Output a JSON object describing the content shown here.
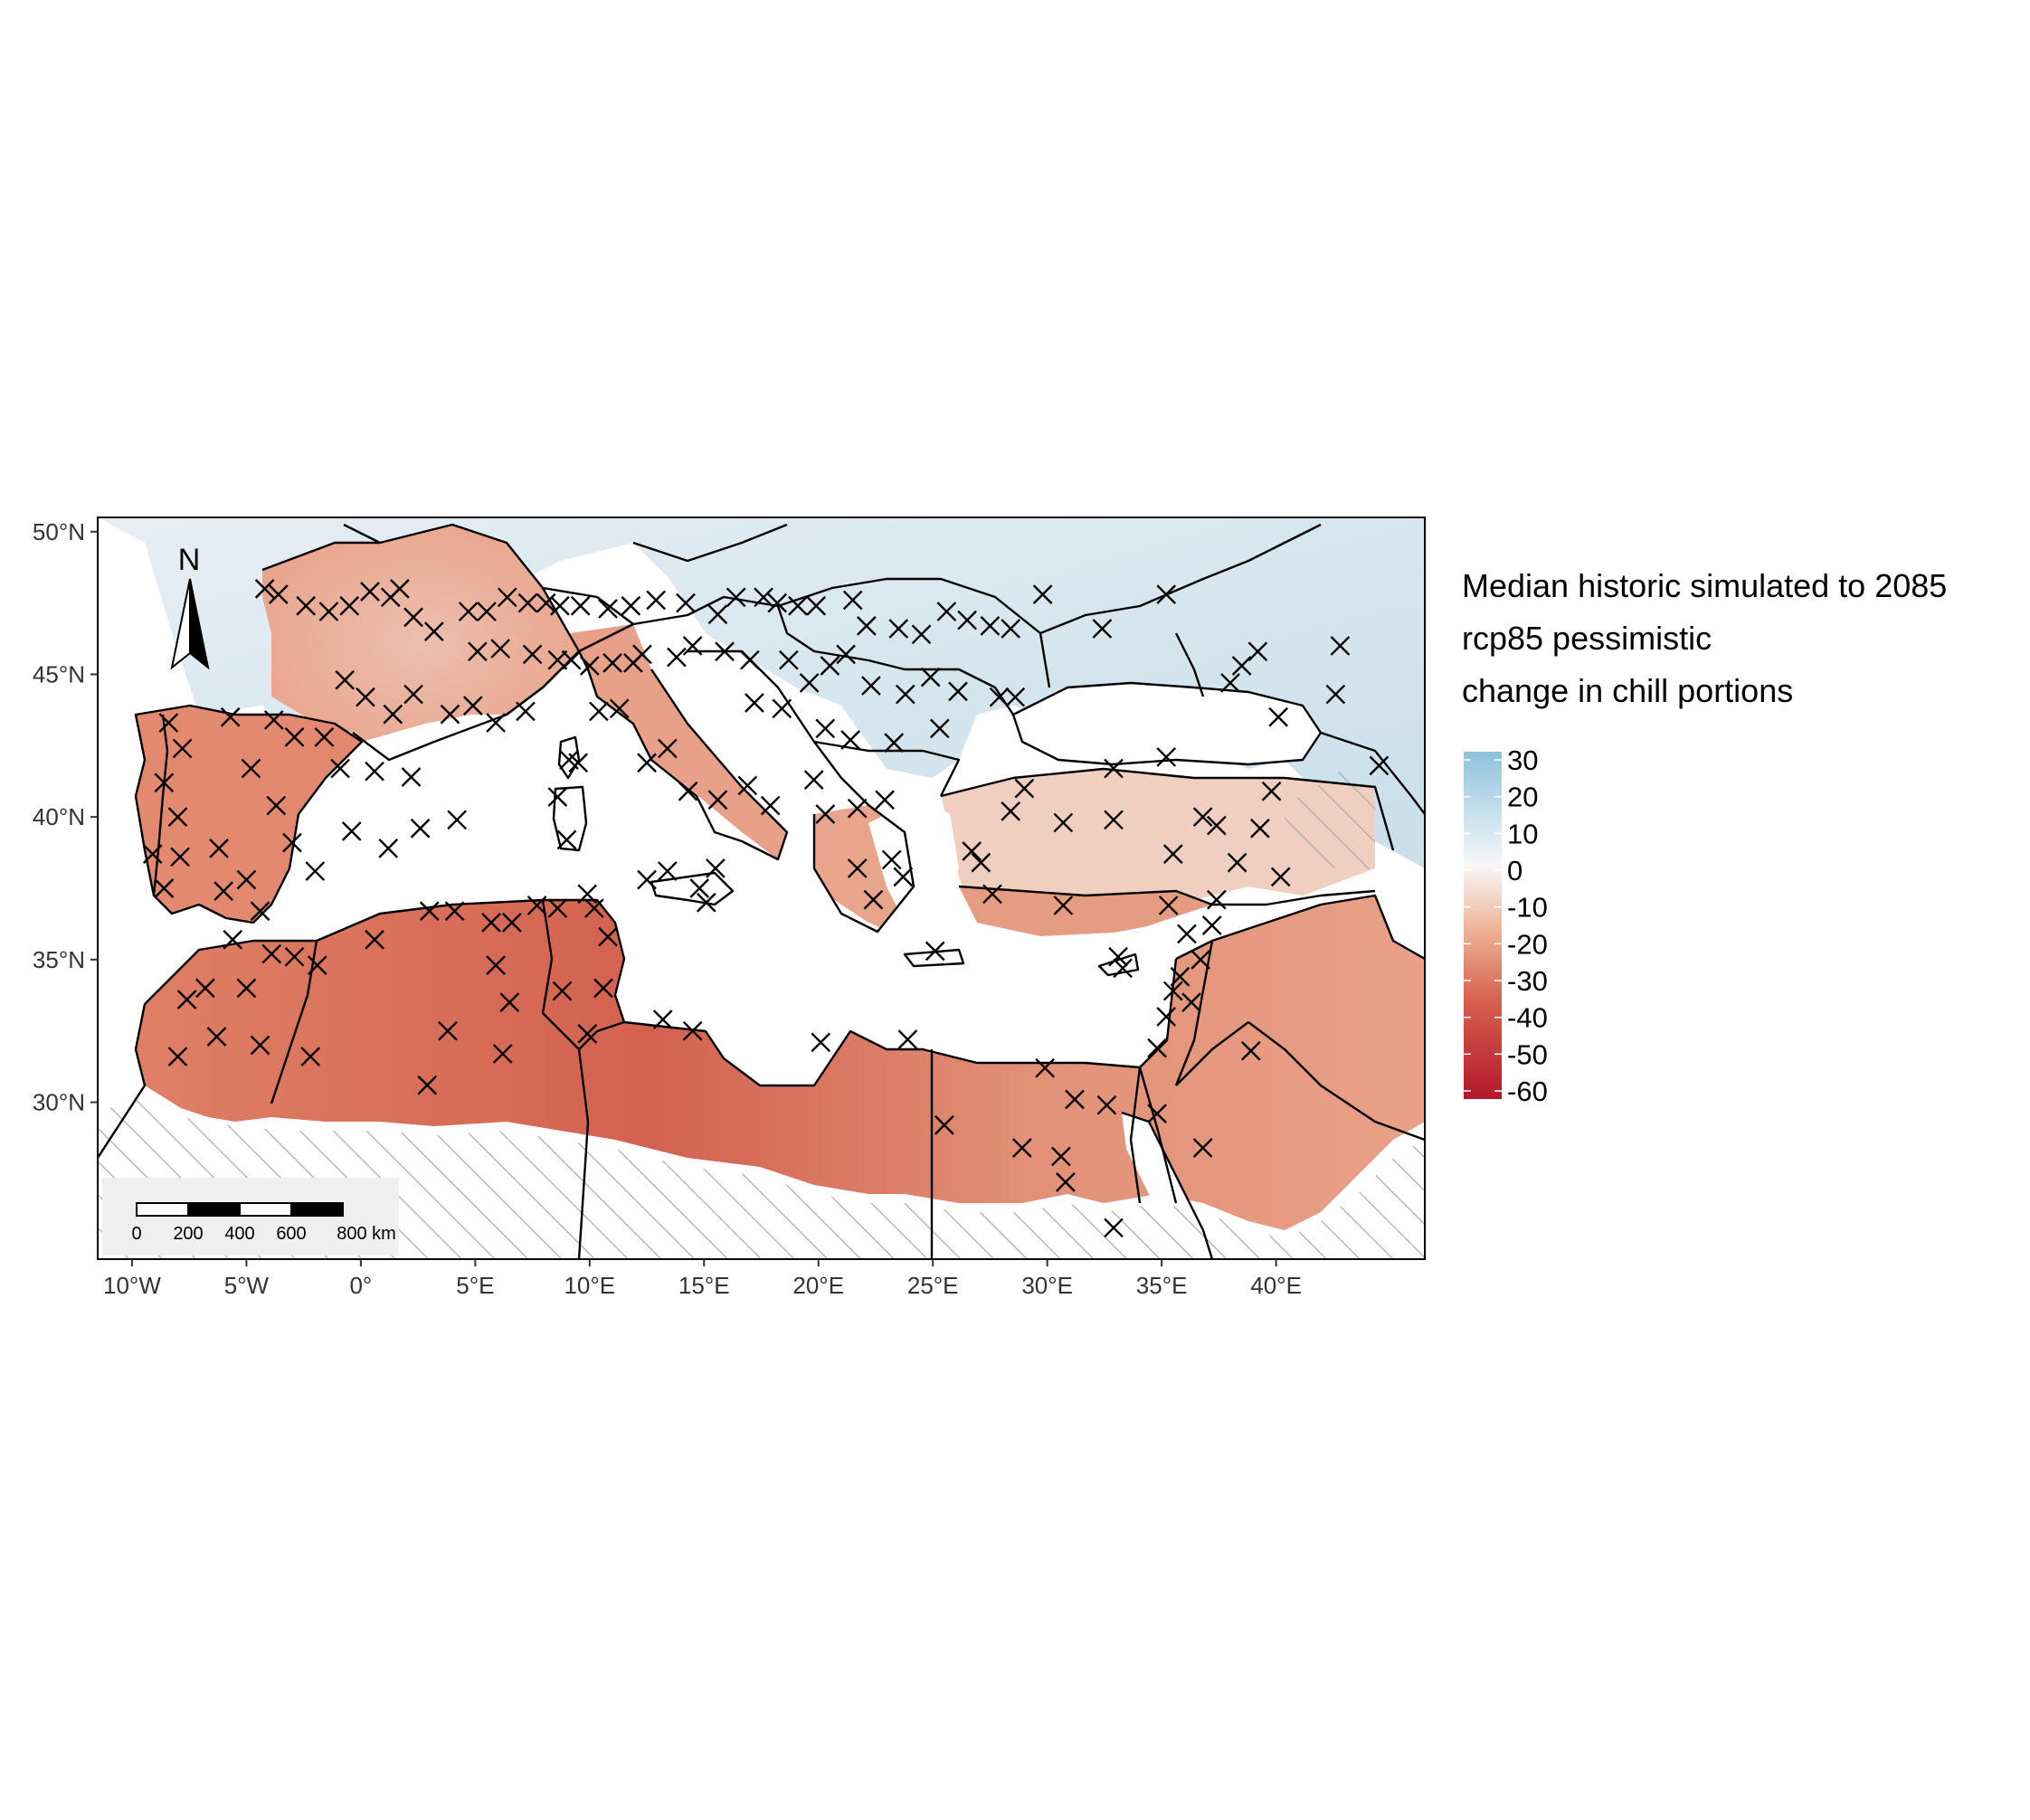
{
  "map": {
    "type": "raster-map",
    "region": "Mediterranean",
    "lon_range": [
      -11.5,
      46.5
    ],
    "lat_range": [
      24.5,
      50.5
    ],
    "x_ticks": [
      "10°W",
      "5°W",
      "0°",
      "5°E",
      "10°E",
      "15°E",
      "20°E",
      "25°E",
      "30°E",
      "35°E",
      "40°E"
    ],
    "x_tick_values": [
      -10,
      -5,
      0,
      5,
      10,
      15,
      20,
      25,
      30,
      35,
      40
    ],
    "y_ticks": [
      "50°N",
      "45°N",
      "40°N",
      "35°N",
      "30°N"
    ],
    "y_tick_values": [
      50,
      45,
      40,
      35,
      30
    ],
    "grid": false,
    "hatched_area": "southern/eastern no-data region (desert)",
    "marker": "x"
  },
  "legend": {
    "title_lines": [
      "Median historic simulated to 2085",
      "rcp85 pessimistic",
      "change in chill portions"
    ],
    "ticks": [
      "30",
      "20",
      "10",
      "0",
      "-10",
      "-20",
      "-30",
      "-40",
      "-50",
      "-60"
    ],
    "tick_values": [
      30,
      20,
      10,
      0,
      -10,
      -20,
      -30,
      -40,
      -50,
      -60
    ],
    "colors": {
      "high": "#8ec1dc",
      "mid": "#f7f7f7",
      "low": "#b2182b"
    },
    "placement": "right"
  },
  "north_arrow": {
    "label": "N",
    "icon": "north-arrow-icon"
  },
  "scale_bar": {
    "labels": [
      "0",
      "200",
      "400",
      "600",
      "800 km"
    ]
  },
  "chart_data": {
    "type": "map-scatter",
    "title": "",
    "xlabel": "",
    "ylabel": "",
    "xlim": [
      -11.5,
      46.5
    ],
    "ylim": [
      24.5,
      50.5
    ],
    "value_scale": {
      "name": "change in chill portions",
      "range": [
        -60,
        30
      ],
      "midpoint": 0
    },
    "stations": [
      [
        -4.2,
        48.0
      ],
      [
        -3.6,
        47.8
      ],
      [
        -2.4,
        47.4
      ],
      [
        -1.4,
        47.2
      ],
      [
        -0.5,
        47.4
      ],
      [
        0.4,
        47.9
      ],
      [
        1.3,
        47.7
      ],
      [
        1.7,
        48.0
      ],
      [
        2.3,
        47.0
      ],
      [
        3.2,
        46.5
      ],
      [
        4.7,
        47.2
      ],
      [
        5.5,
        47.2
      ],
      [
        6.4,
        47.7
      ],
      [
        7.3,
        47.5
      ],
      [
        8.1,
        47.5
      ],
      [
        8.7,
        47.4
      ],
      [
        9.6,
        47.4
      ],
      [
        10.8,
        47.3
      ],
      [
        11.8,
        47.4
      ],
      [
        12.9,
        47.6
      ],
      [
        14.2,
        47.5
      ],
      [
        15.6,
        47.1
      ],
      [
        16.4,
        47.7
      ],
      [
        17.6,
        47.7
      ],
      [
        18.2,
        47.5
      ],
      [
        19.1,
        47.4
      ],
      [
        19.9,
        47.4
      ],
      [
        21.5,
        47.6
      ],
      [
        22.1,
        46.7
      ],
      [
        23.5,
        46.6
      ],
      [
        24.5,
        46.4
      ],
      [
        25.6,
        47.2
      ],
      [
        26.5,
        46.9
      ],
      [
        27.5,
        46.7
      ],
      [
        28.4,
        46.6
      ],
      [
        29.8,
        47.8
      ],
      [
        32.4,
        46.6
      ],
      [
        35.2,
        47.8
      ],
      [
        38.5,
        45.3
      ],
      [
        39.2,
        45.8
      ],
      [
        42.8,
        46.0
      ],
      [
        40.1,
        43.5
      ],
      [
        42.6,
        44.3
      ],
      [
        44.5,
        41.8
      ],
      [
        38.0,
        44.7
      ],
      [
        -0.7,
        44.8
      ],
      [
        0.2,
        44.2
      ],
      [
        1.4,
        43.6
      ],
      [
        2.3,
        44.3
      ],
      [
        3.9,
        43.6
      ],
      [
        4.9,
        43.9
      ],
      [
        5.9,
        43.3
      ],
      [
        7.2,
        43.7
      ],
      [
        5.1,
        45.8
      ],
      [
        6.1,
        45.9
      ],
      [
        7.5,
        45.7
      ],
      [
        8.6,
        45.5
      ],
      [
        9.2,
        45.5
      ],
      [
        10.0,
        45.3
      ],
      [
        11.0,
        45.4
      ],
      [
        11.9,
        45.4
      ],
      [
        12.3,
        45.7
      ],
      [
        13.8,
        45.6
      ],
      [
        14.5,
        46.0
      ],
      [
        15.9,
        45.8
      ],
      [
        17.0,
        45.5
      ],
      [
        18.7,
        45.5
      ],
      [
        20.5,
        45.3
      ],
      [
        21.2,
        45.7
      ],
      [
        22.3,
        44.6
      ],
      [
        23.8,
        44.3
      ],
      [
        24.9,
        44.9
      ],
      [
        26.1,
        44.4
      ],
      [
        27.9,
        44.2
      ],
      [
        28.6,
        44.2
      ],
      [
        25.3,
        43.1
      ],
      [
        23.3,
        42.6
      ],
      [
        21.4,
        42.7
      ],
      [
        20.3,
        43.1
      ],
      [
        18.4,
        43.8
      ],
      [
        19.6,
        44.7
      ],
      [
        17.2,
        44.0
      ],
      [
        -8.4,
        43.3
      ],
      [
        -7.8,
        42.4
      ],
      [
        -8.6,
        41.2
      ],
      [
        -8.0,
        40.0
      ],
      [
        -9.1,
        38.7
      ],
      [
        -8.6,
        37.5
      ],
      [
        -7.9,
        38.6
      ],
      [
        -6.0,
        37.4
      ],
      [
        -5.0,
        37.8
      ],
      [
        -4.4,
        36.7
      ],
      [
        -3.7,
        40.4
      ],
      [
        -3.0,
        39.1
      ],
      [
        -2.0,
        38.1
      ],
      [
        -0.4,
        39.5
      ],
      [
        -0.9,
        41.7
      ],
      [
        0.6,
        41.6
      ],
      [
        2.2,
        41.4
      ],
      [
        -1.6,
        42.8
      ],
      [
        -3.8,
        43.4
      ],
      [
        -5.7,
        43.5
      ],
      [
        -6.2,
        38.9
      ],
      [
        -4.8,
        41.7
      ],
      [
        -2.9,
        42.8
      ],
      [
        1.2,
        38.9
      ],
      [
        2.6,
        39.6
      ],
      [
        4.2,
        39.9
      ],
      [
        9.0,
        39.2
      ],
      [
        8.6,
        40.7
      ],
      [
        9.1,
        42.0
      ],
      [
        9.5,
        41.9
      ],
      [
        10.4,
        43.7
      ],
      [
        11.3,
        43.8
      ],
      [
        12.5,
        41.9
      ],
      [
        13.4,
        42.4
      ],
      [
        14.3,
        40.9
      ],
      [
        15.6,
        40.6
      ],
      [
        16.9,
        41.1
      ],
      [
        17.9,
        40.4
      ],
      [
        15.5,
        38.2
      ],
      [
        13.4,
        38.1
      ],
      [
        14.8,
        37.5
      ],
      [
        12.5,
        37.8
      ],
      [
        15.1,
        37.0
      ],
      [
        19.8,
        41.3
      ],
      [
        20.3,
        40.1
      ],
      [
        21.7,
        40.3
      ],
      [
        22.9,
        40.6
      ],
      [
        21.7,
        38.2
      ],
      [
        23.7,
        37.9
      ],
      [
        22.4,
        37.1
      ],
      [
        23.2,
        38.5
      ],
      [
        25.1,
        35.3
      ],
      [
        27.1,
        38.4
      ],
      [
        28.4,
        40.2
      ],
      [
        29.0,
        41.0
      ],
      [
        30.7,
        39.8
      ],
      [
        32.9,
        39.9
      ],
      [
        35.5,
        38.7
      ],
      [
        36.8,
        40.0
      ],
      [
        39.8,
        40.9
      ],
      [
        38.3,
        38.4
      ],
      [
        37.4,
        37.1
      ],
      [
        35.3,
        36.9
      ],
      [
        33.1,
        35.1
      ],
      [
        30.7,
        36.9
      ],
      [
        27.6,
        37.3
      ],
      [
        26.7,
        38.8
      ],
      [
        32.9,
        41.7
      ],
      [
        35.2,
        42.1
      ],
      [
        37.4,
        39.7
      ],
      [
        40.2,
        37.9
      ],
      [
        39.3,
        39.6
      ],
      [
        -7.6,
        33.6
      ],
      [
        -6.8,
        34.0
      ],
      [
        -5.0,
        34.0
      ],
      [
        -5.6,
        35.7
      ],
      [
        -3.9,
        35.2
      ],
      [
        -2.9,
        35.1
      ],
      [
        -1.9,
        34.8
      ],
      [
        -8.0,
        31.6
      ],
      [
        -6.3,
        32.3
      ],
      [
        -4.4,
        32.0
      ],
      [
        -2.2,
        31.6
      ],
      [
        0.6,
        35.7
      ],
      [
        3.0,
        36.7
      ],
      [
        4.1,
        36.7
      ],
      [
        5.7,
        36.3
      ],
      [
        6.6,
        36.3
      ],
      [
        7.7,
        36.9
      ],
      [
        8.6,
        36.8
      ],
      [
        9.9,
        37.3
      ],
      [
        10.2,
        36.8
      ],
      [
        10.8,
        35.8
      ],
      [
        10.6,
        34.0
      ],
      [
        8.8,
        33.9
      ],
      [
        5.9,
        34.8
      ],
      [
        6.5,
        33.5
      ],
      [
        3.8,
        32.5
      ],
      [
        2.9,
        30.6
      ],
      [
        6.2,
        31.7
      ],
      [
        9.9,
        32.4
      ],
      [
        13.2,
        32.9
      ],
      [
        14.5,
        32.5
      ],
      [
        20.1,
        32.1
      ],
      [
        23.9,
        32.2
      ],
      [
        25.5,
        29.2
      ],
      [
        29.9,
        31.2
      ],
      [
        31.2,
        30.1
      ],
      [
        28.9,
        28.4
      ],
      [
        30.6,
        28.1
      ],
      [
        30.8,
        27.2
      ],
      [
        32.9,
        25.6
      ],
      [
        32.6,
        29.9
      ],
      [
        34.8,
        29.6
      ],
      [
        34.8,
        31.9
      ],
      [
        35.2,
        33.0
      ],
      [
        35.5,
        33.9
      ],
      [
        36.3,
        33.5
      ],
      [
        36.7,
        35.0
      ],
      [
        35.8,
        34.4
      ],
      [
        37.2,
        36.2
      ],
      [
        36.8,
        28.4
      ],
      [
        38.9,
        31.8
      ],
      [
        36.1,
        35.9
      ],
      [
        33.3,
        34.7
      ]
    ]
  }
}
